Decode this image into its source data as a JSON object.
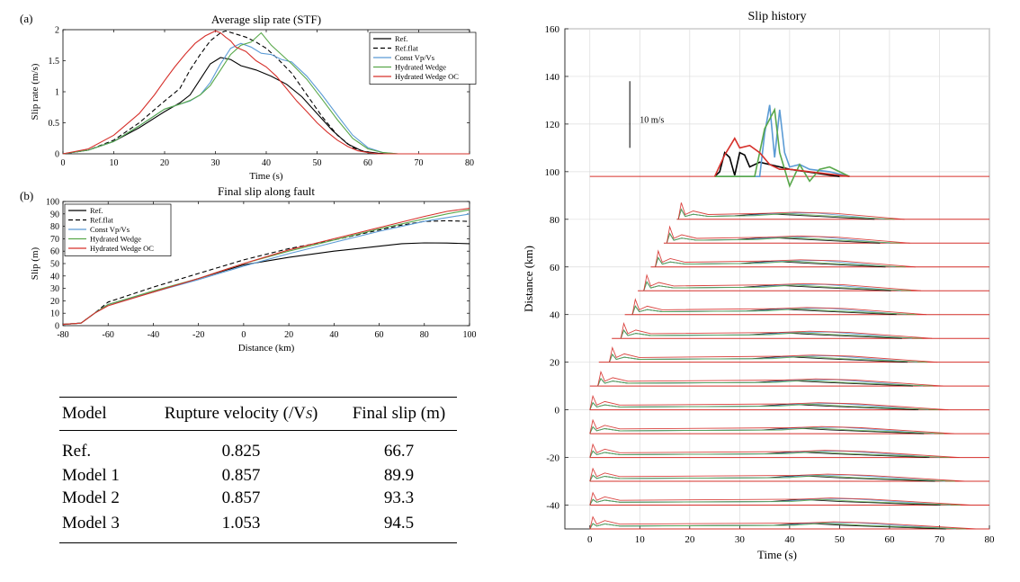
{
  "panel_labels": [
    "(a)",
    "(b)"
  ],
  "colors": {
    "ref": "#000000",
    "ref_flat": "#000000",
    "const": "#5b9bd5",
    "wedge": "#59a84b",
    "wedge_oc": "#d6302b"
  },
  "chart_data": [
    {
      "type": "line",
      "title": "Average slip rate (STF)",
      "xlabel": "Time (s)",
      "ylabel": "Slip rate (m/s)",
      "xlim": [
        0,
        80
      ],
      "ylim": [
        0,
        2
      ],
      "xticks": [
        0,
        10,
        20,
        30,
        40,
        50,
        60,
        70,
        80
      ],
      "yticks": [
        0,
        0.5,
        1,
        1.5,
        2
      ],
      "legend": "top-right",
      "grid": false,
      "series": [
        {
          "name": "Ref.",
          "color": "#000000",
          "dash": "",
          "x": [
            0,
            5,
            10,
            15,
            20,
            23,
            25,
            27,
            29,
            31,
            33,
            35,
            38,
            41,
            44,
            47,
            50,
            53,
            56,
            59,
            62,
            65,
            70,
            80
          ],
          "y": [
            0,
            0.06,
            0.2,
            0.42,
            0.68,
            0.82,
            0.95,
            1.2,
            1.45,
            1.55,
            1.52,
            1.42,
            1.35,
            1.25,
            1.12,
            0.92,
            0.65,
            0.38,
            0.16,
            0.04,
            0.01,
            0,
            0,
            0
          ]
        },
        {
          "name": "Ref.flat",
          "color": "#000000",
          "dash": "5,3",
          "x": [
            0,
            5,
            10,
            15,
            20,
            23,
            25,
            27,
            29,
            31,
            32,
            34,
            36,
            38,
            40,
            42,
            45,
            48,
            51,
            54,
            57,
            60,
            62,
            65,
            80
          ],
          "y": [
            0,
            0.06,
            0.22,
            0.5,
            0.85,
            1.05,
            1.35,
            1.6,
            1.82,
            1.95,
            1.98,
            1.93,
            1.88,
            1.8,
            1.7,
            1.55,
            1.3,
            0.95,
            0.6,
            0.3,
            0.1,
            0.02,
            0,
            0,
            0
          ]
        },
        {
          "name": "Const Vp/Vs",
          "color": "#5b9bd5",
          "dash": "",
          "x": [
            0,
            5,
            10,
            15,
            20,
            23,
            25,
            27,
            29,
            31,
            33,
            35,
            37,
            39,
            41,
            43,
            45,
            48,
            51,
            54,
            57,
            60,
            63,
            66,
            80
          ],
          "y": [
            0,
            0.06,
            0.2,
            0.45,
            0.72,
            0.8,
            0.85,
            0.95,
            1.15,
            1.45,
            1.7,
            1.78,
            1.72,
            1.62,
            1.6,
            1.52,
            1.48,
            1.25,
            0.95,
            0.62,
            0.3,
            0.1,
            0.02,
            0,
            0
          ]
        },
        {
          "name": "Hydrated Wedge",
          "color": "#59a84b",
          "dash": "",
          "x": [
            0,
            5,
            10,
            15,
            20,
            23,
            25,
            27,
            29,
            31,
            33,
            35,
            37,
            39,
            41,
            43,
            45,
            48,
            51,
            54,
            57,
            60,
            63,
            66,
            80
          ],
          "y": [
            0,
            0.06,
            0.2,
            0.45,
            0.72,
            0.8,
            0.86,
            0.95,
            1.1,
            1.35,
            1.6,
            1.75,
            1.8,
            1.95,
            1.75,
            1.6,
            1.45,
            1.2,
            0.88,
            0.55,
            0.25,
            0.08,
            0.02,
            0,
            0
          ]
        },
        {
          "name": "Hydrated Wedge OC",
          "color": "#d6302b",
          "dash": "",
          "x": [
            0,
            5,
            10,
            15,
            18,
            20,
            22,
            24,
            26,
            28,
            30,
            31,
            32,
            33,
            34,
            36,
            38,
            40,
            42,
            44,
            46,
            48,
            50,
            52,
            54,
            56,
            58,
            60,
            62,
            65,
            80
          ],
          "y": [
            0,
            0.08,
            0.3,
            0.65,
            0.95,
            1.18,
            1.4,
            1.6,
            1.78,
            1.9,
            1.98,
            1.95,
            1.88,
            1.82,
            1.72,
            1.65,
            1.5,
            1.4,
            1.25,
            1.05,
            0.85,
            0.68,
            0.5,
            0.35,
            0.22,
            0.12,
            0.05,
            0.02,
            0,
            0,
            0
          ]
        }
      ]
    },
    {
      "type": "line",
      "title": "Final slip along fault",
      "xlabel": "Distance (km)",
      "ylabel": "Slip (m)",
      "xlim": [
        -80,
        100
      ],
      "ylim": [
        0,
        100
      ],
      "xticks": [
        -80,
        -60,
        -40,
        -20,
        0,
        20,
        40,
        60,
        80,
        100
      ],
      "yticks": [
        0,
        10,
        20,
        30,
        40,
        50,
        60,
        70,
        80,
        90,
        100
      ],
      "legend": "top-left",
      "grid": false,
      "series": [
        {
          "name": "Ref.",
          "color": "#000000",
          "dash": "",
          "x": [
            -80,
            -72,
            -66,
            -60,
            -40,
            -20,
            0,
            20,
            40,
            60,
            70,
            80,
            90,
            100
          ],
          "y": [
            1,
            2,
            10,
            17,
            27,
            38,
            49,
            55,
            60,
            64,
            66,
            66.7,
            66.5,
            66
          ]
        },
        {
          "name": "Ref.flat",
          "color": "#000000",
          "dash": "5,3",
          "x": [
            -80,
            -72,
            -66,
            -60,
            -40,
            -20,
            0,
            20,
            40,
            60,
            70,
            80,
            90,
            100
          ],
          "y": [
            1,
            2,
            10,
            19,
            31,
            42,
            53,
            62,
            69,
            77,
            81,
            84,
            84.5,
            84
          ]
        },
        {
          "name": "Const Vp/Vs",
          "color": "#5b9bd5",
          "dash": "",
          "x": [
            -80,
            -72,
            -66,
            -60,
            -40,
            -20,
            0,
            20,
            40,
            60,
            80,
            90,
            100
          ],
          "y": [
            1,
            2,
            10,
            17,
            27,
            37,
            48,
            58,
            67,
            76,
            84,
            87,
            89.9
          ]
        },
        {
          "name": "Hydrated Wedge",
          "color": "#59a84b",
          "dash": "",
          "x": [
            -80,
            -72,
            -66,
            -60,
            -40,
            -20,
            0,
            20,
            40,
            60,
            80,
            90,
            100
          ],
          "y": [
            1,
            2,
            10,
            17,
            28,
            38,
            50,
            60,
            69,
            78,
            86,
            90,
            93.3
          ]
        },
        {
          "name": "Hydrated Wedge OC",
          "color": "#d6302b",
          "dash": "",
          "x": [
            -80,
            -72,
            -66,
            -60,
            -40,
            -20,
            0,
            20,
            40,
            60,
            80,
            90,
            100
          ],
          "y": [
            1,
            2,
            10,
            16,
            27,
            38,
            50,
            61,
            70,
            79,
            88,
            92,
            94.5
          ]
        }
      ]
    },
    {
      "type": "line",
      "title": "Slip history",
      "xlabel": "Time (s)",
      "ylabel": "Distance (km)",
      "xlim": [
        -5,
        80
      ],
      "ylim": [
        -50,
        160
      ],
      "xticks": [
        0,
        10,
        20,
        30,
        40,
        50,
        60,
        70,
        80
      ],
      "yticks": [
        -40,
        -20,
        0,
        20,
        40,
        60,
        80,
        100,
        120,
        140,
        160
      ],
      "grid": true,
      "scale_bar": {
        "label": "10 m/s",
        "value": 10
      },
      "baselines": [
        98,
        80,
        70,
        60,
        50,
        40,
        30,
        20,
        10,
        0,
        -10,
        -20,
        -30,
        -40,
        -50
      ],
      "baseline_start": [
        0,
        0,
        0,
        0,
        0,
        0,
        0,
        0,
        0,
        0,
        0,
        0,
        0,
        0,
        0
      ],
      "traces": [
        {
          "offset": 98,
          "onset": 25,
          "color": "#000000",
          "x": [
            25,
            26,
            27,
            28,
            29,
            30,
            31,
            32,
            34,
            36,
            40,
            45,
            50
          ],
          "y": [
            0,
            2,
            10,
            8,
            0.5,
            10,
            9,
            4,
            6,
            5,
            3,
            1.5,
            0
          ]
        },
        {
          "offset": 98,
          "onset": 25,
          "color": "#5b9bd5",
          "x": [
            25,
            34,
            35,
            36,
            37,
            38,
            39,
            40,
            42,
            44,
            48,
            52
          ],
          "y": [
            0,
            0,
            18,
            30,
            8,
            28,
            10,
            4,
            5,
            3,
            2,
            0
          ]
        },
        {
          "offset": 98,
          "onset": 25,
          "color": "#59a84b",
          "x": [
            25,
            33,
            35,
            37,
            38,
            40,
            42,
            44,
            46,
            48,
            50,
            52
          ],
          "y": [
            0,
            0,
            20,
            28,
            10,
            -4,
            5,
            -2,
            3,
            4,
            2,
            0
          ]
        },
        {
          "offset": 98,
          "onset": 25,
          "color": "#d6302b",
          "x": [
            25,
            27,
            29,
            30,
            32,
            34,
            36,
            38,
            40,
            44,
            48,
            52
          ],
          "y": [
            0,
            9,
            16,
            12,
            13,
            10,
            5,
            3,
            3,
            2,
            1,
            0
          ]
        }
      ]
    }
  ],
  "table": {
    "headers": [
      "Model",
      "Rupture velocity (/V",
      "S",
      ")",
      "Final slip (m)"
    ],
    "rows": [
      [
        "Ref.",
        "0.825",
        "66.7"
      ],
      [
        "Model 1",
        "0.857",
        "89.9"
      ],
      [
        "Model 2",
        "0.857",
        "93.3"
      ],
      [
        "Model 3",
        "1.053",
        "94.5"
      ]
    ]
  }
}
